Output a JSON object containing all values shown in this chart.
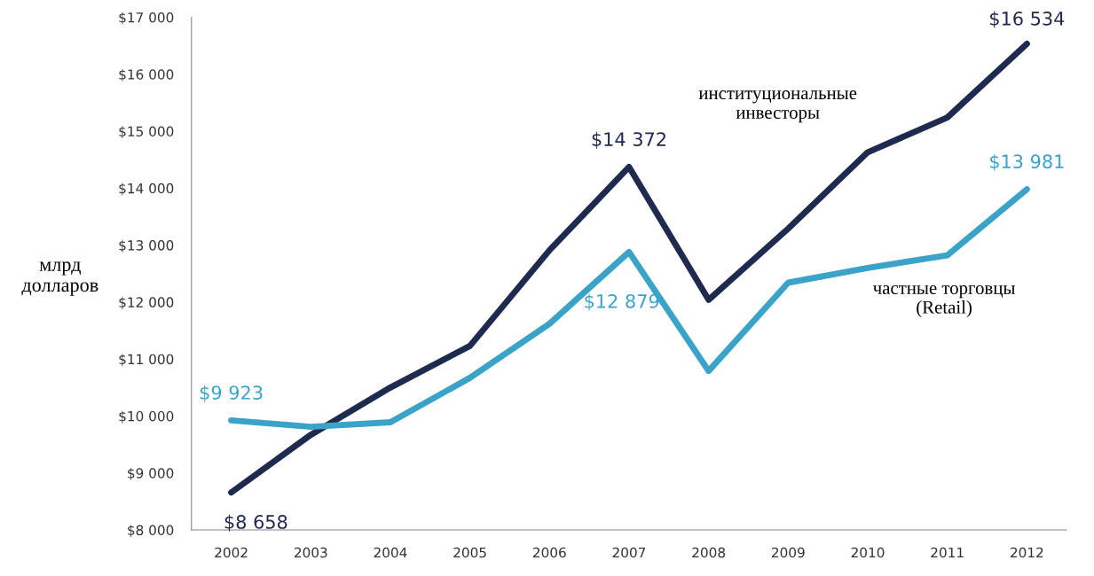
{
  "chart_data": {
    "type": "line",
    "ylabel": "млрд\nдолларов",
    "categories": [
      "2002",
      "2003",
      "2004",
      "2005",
      "2006",
      "2007",
      "2008",
      "2009",
      "2010",
      "2011",
      "2012"
    ],
    "series": [
      {
        "name": "институциональные\nинвесторы",
        "color": "#1f2a4f",
        "values": [
          8658,
          9670,
          10500,
          11230,
          12910,
          14372,
          12040,
          13290,
          14630,
          15240,
          16534
        ],
        "value_labels": [
          "$8 658",
          null,
          null,
          null,
          null,
          "$14 372",
          null,
          null,
          null,
          null,
          "$16 534"
        ]
      },
      {
        "name": "частные торговцы\n(Retail)",
        "color": "#3ba3c8",
        "values": [
          9923,
          9810,
          9890,
          10670,
          11620,
          12879,
          10790,
          12340,
          12600,
          12820,
          13981
        ],
        "value_labels": [
          "$9 923",
          null,
          null,
          null,
          null,
          "$12 879",
          null,
          null,
          null,
          null,
          "$13 981"
        ]
      }
    ],
    "ylim": [
      8000,
      17000
    ],
    "yticks": [
      {
        "value": 8000,
        "label": "$8 000"
      },
      {
        "value": 9000,
        "label": "$9 000"
      },
      {
        "value": 10000,
        "label": "$10 000"
      },
      {
        "value": 11000,
        "label": "$11 000"
      },
      {
        "value": 12000,
        "label": "$12 000"
      },
      {
        "value": 13000,
        "label": "$13 000"
      },
      {
        "value": 14000,
        "label": "$14 000"
      },
      {
        "value": 15000,
        "label": "$15 000"
      },
      {
        "value": 16000,
        "label": "$16 000"
      },
      {
        "value": 17000,
        "label": "$17 000"
      }
    ],
    "grid": false,
    "legend": false,
    "marker": "none",
    "line_style": "solid"
  }
}
